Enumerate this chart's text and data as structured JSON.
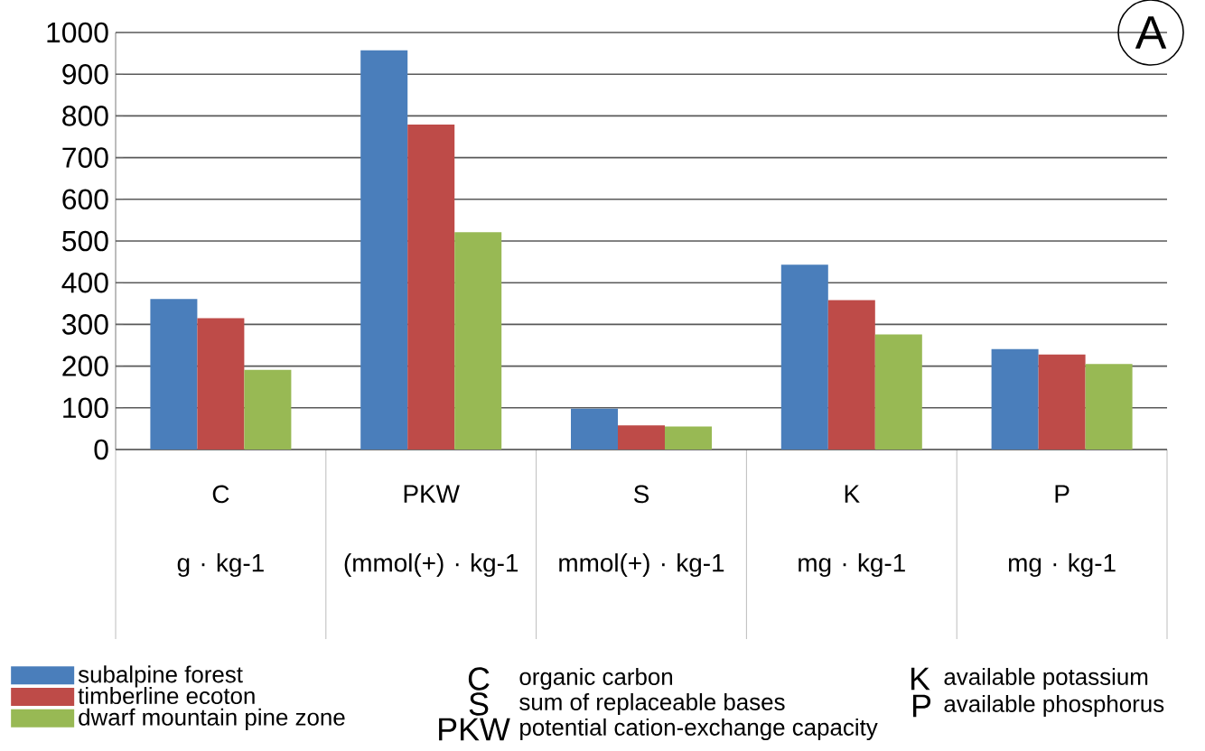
{
  "chart_data": {
    "type": "bar",
    "categories": [
      "C",
      "PKW",
      "S",
      "K",
      "P"
    ],
    "series": [
      {
        "name": "subalpine forest",
        "color": "#4a7ebb",
        "values": [
          361,
          957,
          98,
          443,
          241
        ]
      },
      {
        "name": "timberline ecoton",
        "color": "#be4b48",
        "values": [
          315,
          779,
          58,
          358,
          228
        ]
      },
      {
        "name": "dwarf mountain pine zone",
        "color": "#98b954",
        "values": [
          191,
          521,
          55,
          276,
          205
        ]
      }
    ],
    "ylim": [
      0,
      1000
    ],
    "yticks": [
      0,
      100,
      200,
      300,
      400,
      500,
      600,
      700,
      800,
      900,
      1000
    ],
    "grid": "y",
    "legend": "bottom left",
    "annotations": [
      "g · kg-1",
      "(mmol(+) · kg-1",
      "mmol(+) · kg-1",
      "mg · kg-1",
      "mg · kg-1",
      "A",
      "C",
      "organic carbon",
      "S",
      "sum of replaceable bases",
      "PKW",
      "potential cation-exchange capacity",
      "K",
      "available potassium",
      "P",
      "available phosphorus"
    ]
  }
}
